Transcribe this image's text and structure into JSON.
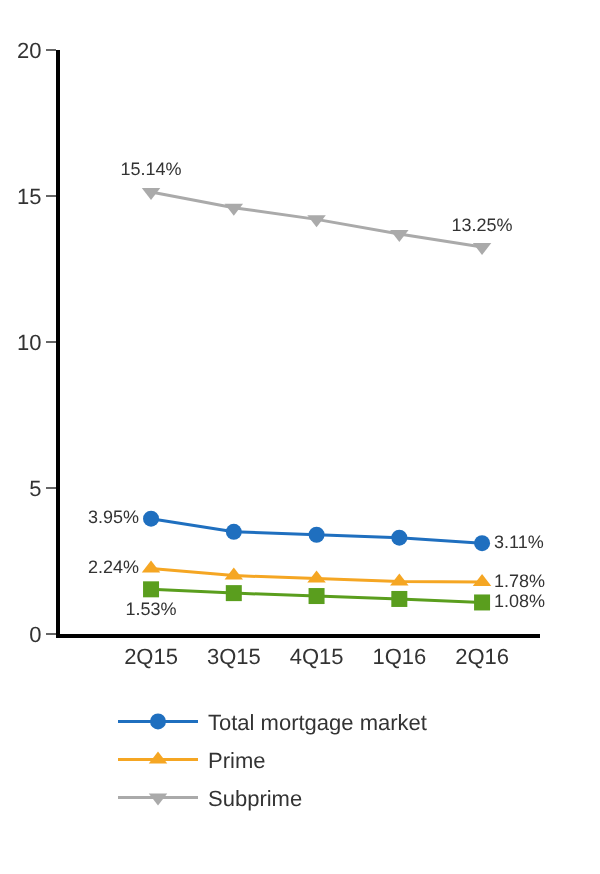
{
  "chart_data": {
    "type": "line",
    "categories": [
      "2Q15",
      "3Q15",
      "4Q15",
      "1Q16",
      "2Q16"
    ],
    "ylim": [
      0,
      20
    ],
    "yticks": [
      0,
      5,
      10,
      15,
      20
    ],
    "grid": false,
    "legend": "bottom",
    "series": [
      {
        "name": "Total mortgage market",
        "color": "#1f6fbf",
        "marker": "circle",
        "values": [
          3.95,
          3.5,
          3.4,
          3.3,
          3.11
        ],
        "value_labels": [
          "3.95%",
          null,
          null,
          null,
          "3.11%"
        ]
      },
      {
        "color": "#5a9e1e",
        "marker": "square",
        "values": [
          1.53,
          1.4,
          1.3,
          1.2,
          1.08
        ],
        "value_labels": [
          "1.53%",
          null,
          null,
          null,
          "1.08%"
        ]
      },
      {
        "name": "Prime",
        "color": "#f5a623",
        "marker": "triangle",
        "values": [
          2.24,
          2.0,
          1.9,
          1.8,
          1.78
        ],
        "value_labels": [
          "2.24%",
          null,
          null,
          null,
          "1.78%"
        ]
      },
      {
        "name": "Subprime",
        "color": "#aaaaaa",
        "marker": "triangle-down",
        "values": [
          15.14,
          14.6,
          14.2,
          13.7,
          13.25
        ],
        "value_labels": [
          "15.14%",
          null,
          null,
          null,
          "13.25%"
        ]
      }
    ]
  }
}
